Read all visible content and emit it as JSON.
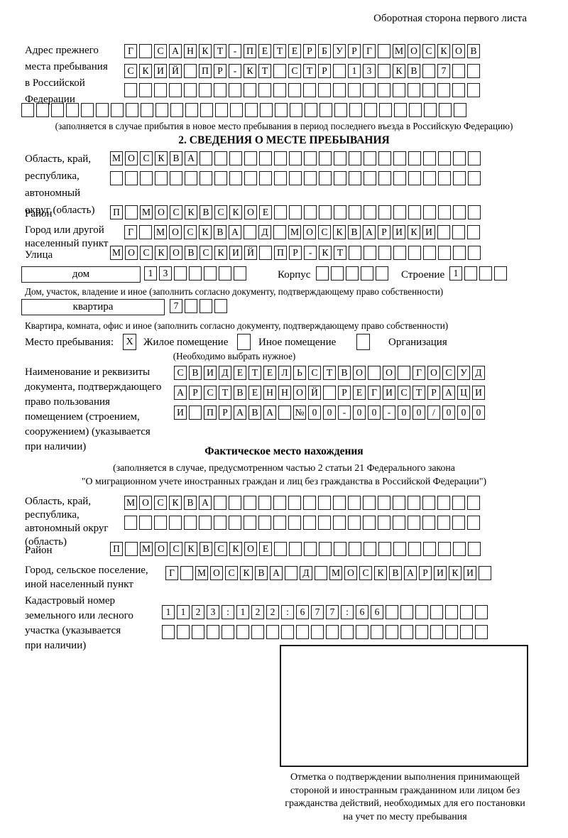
{
  "page": {
    "back_note": "Оборотная сторона первого листа"
  },
  "prev_address": {
    "label": "Адрес прежнего\nместа пребывания\nв Российской\nФедерации",
    "row1": {
      "text": "Г САНКТ-ПЕТЕРБУРГ МОСКОВ",
      "count": 24
    },
    "row2": {
      "text": "СКИЙ ПР-КТ СТР 13 КВ 7",
      "count": 24
    },
    "row3": {
      "text": "",
      "count": 24
    },
    "row4": {
      "text": "",
      "count": 30
    },
    "note": "(заполняется в случае прибытия в новое место пребывания в период последнего въезда в Российскую Федерацию)"
  },
  "section2": {
    "title": "2. СВЕДЕНИЯ О МЕСТЕ ПРЕБЫВАНИЯ",
    "region": {
      "label": "Область, край,\nреспублика,\nавтономный\nокруг (область)",
      "row1": {
        "text": "МОСКВА",
        "count": 25
      },
      "row2": {
        "text": "",
        "count": 25
      }
    },
    "district": {
      "label": "Район",
      "row": {
        "text": "П МОСКВСКОЕ",
        "count": 25
      }
    },
    "city": {
      "label": "Город или другой\nнаселенный пункт",
      "row": {
        "text": "Г МОСКВА Д МОСКВАРИКИ",
        "count": 24
      }
    },
    "street": {
      "label": "Улица",
      "row": {
        "text": "МОСКОВСКИЙ ПР-КТ",
        "count": 25
      }
    },
    "house": {
      "box_label": "дом",
      "cells": {
        "text": "13",
        "count": 7
      },
      "korpus_label": "Корпус",
      "korpus_cells": {
        "text": "",
        "count": 5
      },
      "stroenie_label": "Строение",
      "stroenie_cells": {
        "text": "1",
        "count": 4
      },
      "caption": "Дом, участок, владение и иное (заполнить согласно документу, подтверждающему право собственности)"
    },
    "apartment": {
      "box_label": "квартира",
      "cells": {
        "text": "7",
        "count": 4
      },
      "caption": "Квартира, комната, офис и иное (заполнить согласно документу, подтверждающему право собственности)"
    },
    "stay": {
      "label": "Место пребывания:",
      "opt1": {
        "mark": "X",
        "label": "Жилое помещение"
      },
      "opt2": {
        "mark": "",
        "label": "Иное помещение"
      },
      "opt3": {
        "mark": "",
        "label": "Организация"
      },
      "hint": "(Необходимо выбрать нужное)"
    },
    "document": {
      "label": "Наименование и реквизиты\nдокумента, подтверждающего\nправо пользования\nпомещением (строением,\nсооружением) (указывается\nпри наличии)",
      "row1": {
        "text": "СВИДЕТЕЛЬСТВО О ГОСУД",
        "count": 21
      },
      "row2": {
        "text": "АРСТВЕННОЙ РЕГИСТРАЦИ",
        "count": 21
      },
      "row3": {
        "text": "И ПРАВА №00-00-00/000",
        "count": 21
      }
    }
  },
  "actual_location": {
    "title": "Фактическое место нахождения",
    "note1": "(заполняется в случае, предусмотренном частью 2 статьи 21 Федерального закона",
    "note2": "\"О миграционном учете иностранных граждан и лиц без гражданства в Российской Федерации\")",
    "region": {
      "label": "Область, край,\nреспублика,\nавтономный округ\n(область)",
      "row1": {
        "text": "МОСКВА",
        "count": 24
      },
      "row2": {
        "text": "",
        "count": 24
      }
    },
    "district": {
      "label": "Район",
      "row": {
        "text": "П МОСКВСКОЕ",
        "count": 25
      }
    },
    "city": {
      "label": "Город, сельское поселение,\nиной населенный пункт",
      "row": {
        "text": "Г МОСКВА Д МОСКВАРИКИ",
        "count": 22
      }
    },
    "cadastre": {
      "label": "Кадастровый номер\nземельного или лесного\nучастка (указывается\nпри наличии)",
      "row1": {
        "text": "1123:122:677:66",
        "count": 22
      },
      "row2": {
        "text": "",
        "count": 22
      }
    },
    "stamp_caption": "Отметка о подтверждении выполнения принимающей стороной и иностранным гражданином или лицом без гражданства действий, необходимых для его постановки на учет по месту пребывания"
  }
}
